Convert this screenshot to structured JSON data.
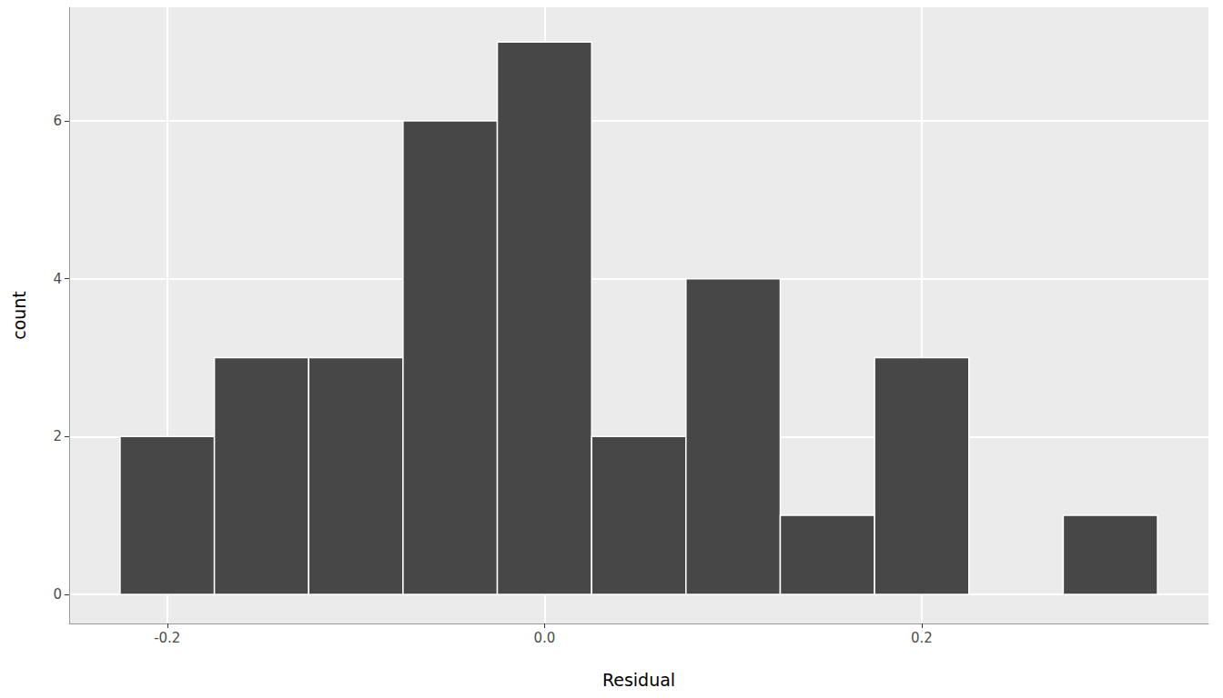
{
  "chart_data": {
    "type": "histogram",
    "bins": [
      -0.225,
      -0.175,
      -0.125,
      -0.075,
      -0.025,
      0.025,
      0.075,
      0.125,
      0.175,
      0.225,
      0.275,
      0.325
    ],
    "counts": [
      2,
      3,
      3,
      6,
      7,
      2,
      4,
      1,
      3,
      0,
      1
    ],
    "color": "#474747",
    "xlabel": "Residual",
    "ylabel": "count",
    "xlim": [
      -0.252,
      0.352
    ],
    "ylim": [
      -0.37,
      7.44
    ],
    "xticks": [
      -0.2,
      {
        "value": 0,
        "label": "0.0"
      },
      0.2
    ],
    "yticks": [
      0,
      2,
      4,
      6
    ],
    "grid": true
  }
}
